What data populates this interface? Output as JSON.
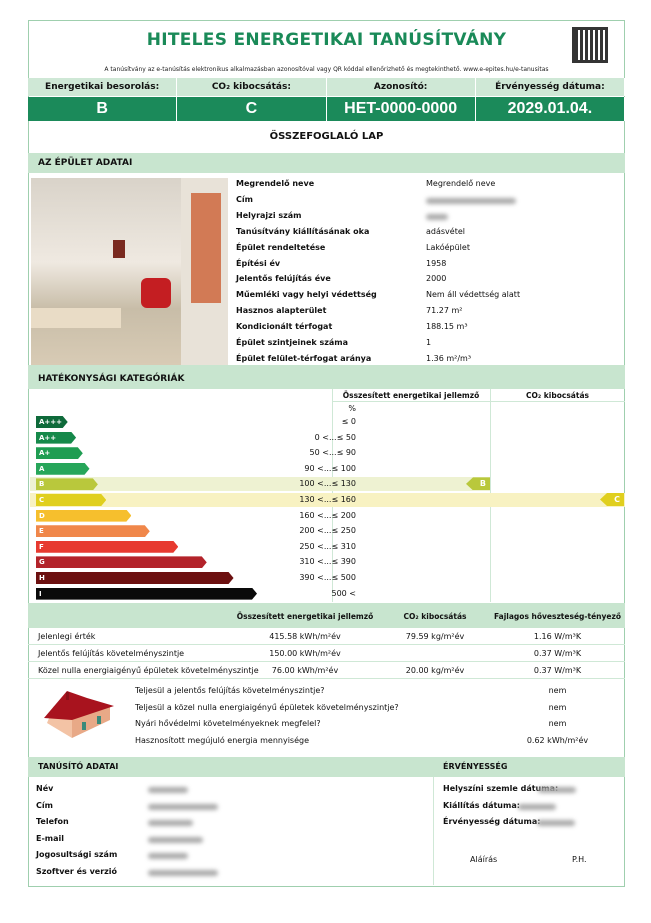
{
  "header": {
    "title": "HITELES ENERGETIKAI TANÚSÍTVÁNY",
    "note": "A tanúsítvány az e-tanúsítás elektronikus alkalmazásban azonosítóval vagy QR kóddal ellenőrizhető és megtekinthető. www.e-epites.hu/e-tanusitas",
    "labels": [
      "Energetikai besorolás:",
      "CO₂ kibocsátás:",
      "Azonosító:",
      "Érvényesség dátuma:"
    ],
    "values": [
      "B",
      "C",
      "HET-0000-0000",
      "2029.01.04."
    ]
  },
  "summary_title": "ÖSSZEFOGLALÓ LAP",
  "building": {
    "section_title": "AZ ÉPÜLET ADATAI",
    "rows": [
      {
        "label": "Megrendelő neve",
        "value": "Megrendelő neve"
      },
      {
        "label": "Cím",
        "value": null
      },
      {
        "label": "Helyrajzi szám",
        "value": null
      },
      {
        "label": "Tanúsítvány kiállításának oka",
        "value": "adásvétel"
      },
      {
        "label": "Épület rendeltetése",
        "value": "Lakóépület"
      },
      {
        "label": "Építési év",
        "value": "1958"
      },
      {
        "label": "Jelentős felújítás éve",
        "value": "2000"
      },
      {
        "label": "Műemléki vagy helyi védettség",
        "value": "Nem áll védettség alatt"
      },
      {
        "label": "Hasznos alapterület",
        "value": "71.27 m²"
      },
      {
        "label": "Kondicionált térfogat",
        "value": "188.15 m³"
      },
      {
        "label": "Épület szintjeinek száma",
        "value": "1"
      },
      {
        "label": "Épület felület-térfogat aránya",
        "value": "1.36 m²/m³"
      }
    ]
  },
  "efficiency": {
    "section_title": "HATÉKONYSÁGI KATEGÓRIÁK",
    "col_energy": "Összesített energetikai jellemző",
    "col_co2": "CO₂ kibocsátás",
    "unit": "%",
    "energy_class": "B",
    "co2_class": "C",
    "classes": [
      {
        "label": "A+++",
        "range": "≤ 0",
        "color": "#0e6a3a",
        "level": 0.07
      },
      {
        "label": "A++",
        "range": "0 <...≤ 50",
        "color": "#16894a",
        "level": 0.12
      },
      {
        "label": "A+",
        "range": "50 <...≤ 90",
        "color": "#1f9d52",
        "level": 0.16
      },
      {
        "label": "A",
        "range": "90 <...≤ 100",
        "color": "#27a65a",
        "level": 0.2
      },
      {
        "label": "B",
        "range": "100 <...≤ 130",
        "color": "#b9c83c",
        "level": 0.25
      },
      {
        "label": "C",
        "range": "130 <...≤ 160",
        "color": "#e0cf1e",
        "level": 0.3
      },
      {
        "label": "D",
        "range": "160 <...≤ 200",
        "color": "#f6bf2d",
        "level": 0.45
      },
      {
        "label": "E",
        "range": "200 <...≤ 250",
        "color": "#f0874a",
        "level": 0.56
      },
      {
        "label": "F",
        "range": "250 <...≤ 310",
        "color": "#e73a30",
        "level": 0.73
      },
      {
        "label": "G",
        "range": "310 <...≤ 390",
        "color": "#b3232a",
        "level": 0.9
      },
      {
        "label": "H",
        "range": "390 <...≤ 500",
        "color": "#6c1010",
        "level": 1.06
      },
      {
        "label": "I",
        "range": "500 <",
        "color": "#0a0a0a",
        "level": 1.2
      }
    ]
  },
  "values_table": {
    "headers": [
      "Összesített energetikai jellemző",
      "CO₂ kibocsátás",
      "Fajlagos hőveszteség-tényező"
    ],
    "rows": [
      {
        "label": "Jelenlegi érték",
        "cells": [
          "415.58 kWh/m²év",
          "79.59 kg/m²év",
          "1.16 W/m³K"
        ]
      },
      {
        "label": "Jelentős felújítás követelményszintje",
        "cells": [
          "150.00 kWh/m²év",
          "",
          "0.37 W/m³K"
        ]
      },
      {
        "label": "Közel nulla energiaigényű épületek követelményszintje",
        "cells": [
          "76.00 kWh/m²év",
          "20.00 kg/m²év",
          "0.37 W/m³K"
        ]
      }
    ]
  },
  "checks": [
    {
      "q": "Teljesül a jelentős felújítás követelményszintje?",
      "a": "nem"
    },
    {
      "q": "Teljesül a közel nulla energiaigényű épületek követelményszintje?",
      "a": "nem"
    },
    {
      "q": "Nyári hővédelmi követelményeknek megfelel?",
      "a": "nem"
    },
    {
      "q": "Hasznosított megújuló energia mennyisége",
      "a": "0.62 kWh/m²év"
    }
  ],
  "certifier": {
    "section_title": "TANÚSÍTÓ ADATAI",
    "rows": [
      "Név",
      "Cím",
      "Telefon",
      "E-mail",
      "Jogosultsági szám",
      "Szoftver és verzió"
    ]
  },
  "validity": {
    "section_title": "ÉRVÉNYESSÉG",
    "rows": [
      "Helyszíni szemle dátuma:",
      "Kiállítás dátuma:",
      "Érvényesség dátuma:"
    ],
    "signature": "Aláírás",
    "stamp": "P.H."
  }
}
